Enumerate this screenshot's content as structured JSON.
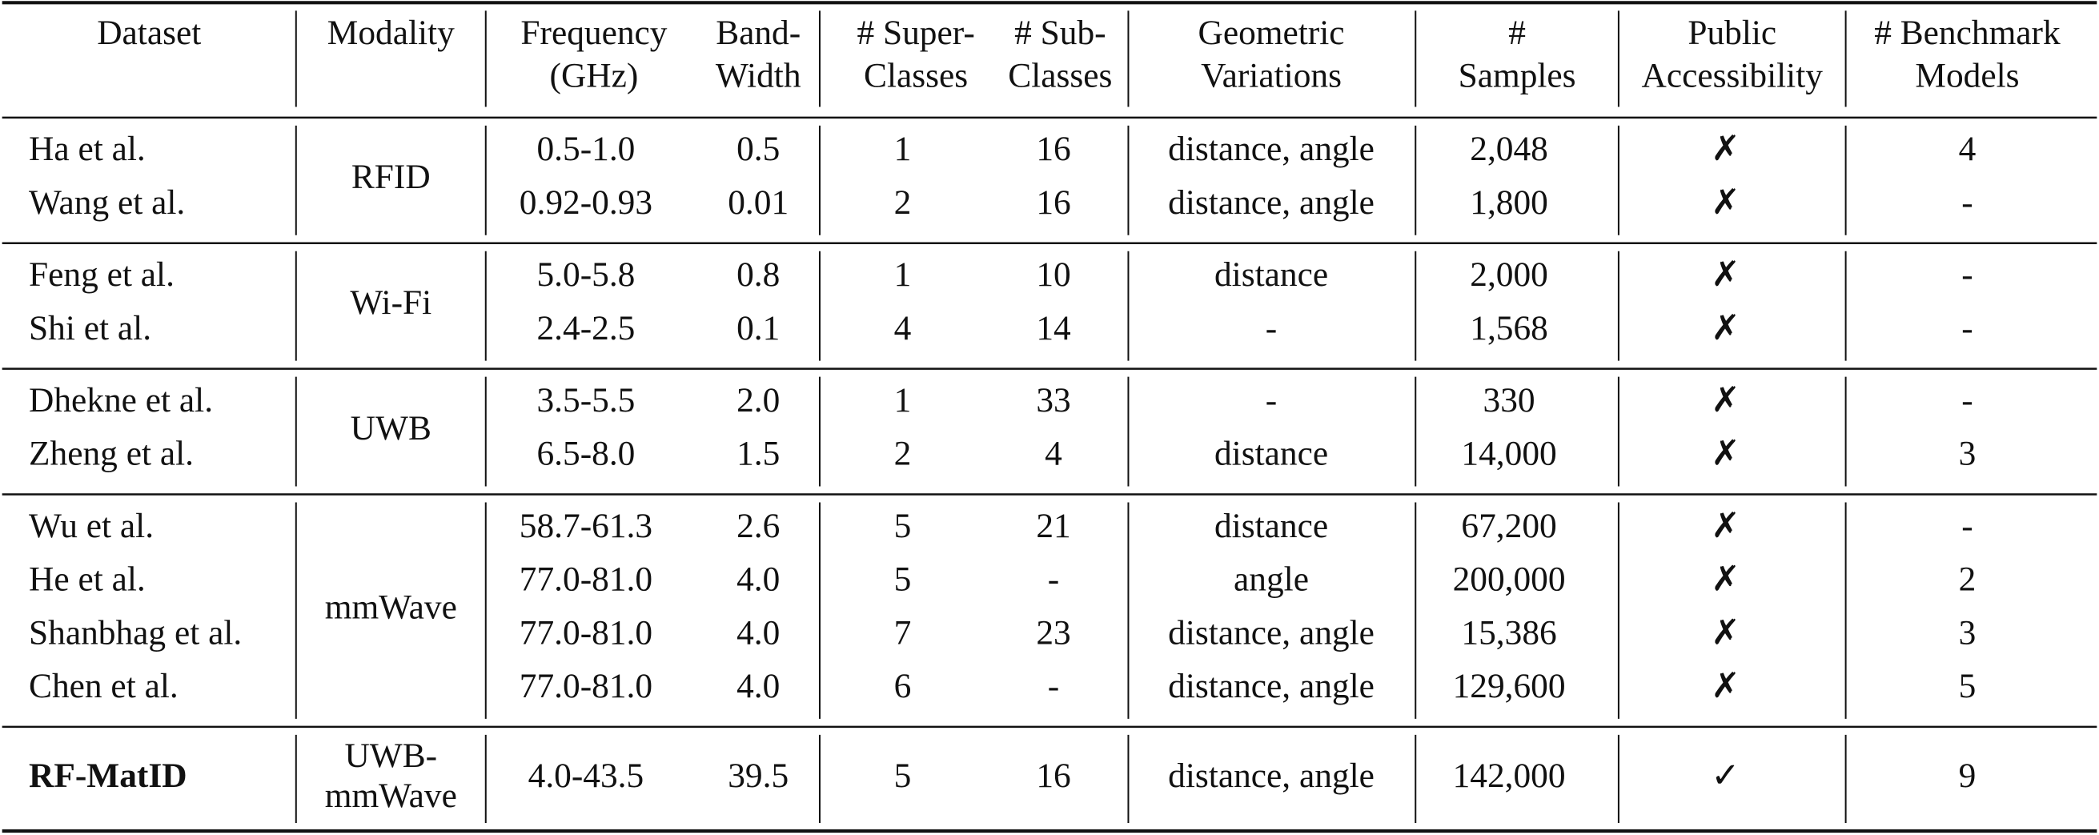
{
  "table": {
    "header": [
      [
        "Dataset"
      ],
      [
        "Modality"
      ],
      [
        "Frequency",
        "(GHz)"
      ],
      [
        "Band-",
        "Width"
      ],
      [
        "# Super-",
        "Classes"
      ],
      [
        "# Sub-",
        "Classes"
      ],
      [
        "Geometric",
        "Variations"
      ],
      [
        "#",
        "Samples"
      ],
      [
        "Public",
        "Accessibility"
      ],
      [
        "# Benchmark",
        "Models"
      ]
    ],
    "groups": [
      {
        "modality": [
          "RFID"
        ],
        "rows": [
          [
            "Ha et al.",
            "0.5-1.0",
            "0.5",
            "1",
            "16",
            "distance, angle",
            "2,048",
            "✗",
            "4"
          ],
          [
            "Wang et al.",
            "0.92-0.93",
            "0.01",
            "2",
            "16",
            "distance, angle",
            "1,800",
            "✗",
            "-"
          ]
        ]
      },
      {
        "modality": [
          "Wi-Fi"
        ],
        "rows": [
          [
            "Feng et al.",
            "5.0-5.8",
            "0.8",
            "1",
            "10",
            "distance",
            "2,000",
            "✗",
            "-"
          ],
          [
            "Shi et al.",
            "2.4-2.5",
            "0.1",
            "4",
            "14",
            "-",
            "1,568",
            "✗",
            "-"
          ]
        ]
      },
      {
        "modality": [
          "UWB"
        ],
        "rows": [
          [
            "Dhekne et al.",
            "3.5-5.5",
            "2.0",
            "1",
            "33",
            "-",
            "330",
            "✗",
            "-"
          ],
          [
            "Zheng et al.",
            "6.5-8.0",
            "1.5",
            "2",
            "4",
            "distance",
            "14,000",
            "✗",
            "3"
          ]
        ]
      },
      {
        "modality": [
          "mmWave"
        ],
        "rows": [
          [
            "Wu et al.",
            "58.7-61.3",
            "2.6",
            "5",
            "21",
            "distance",
            "67,200",
            "✗",
            "-"
          ],
          [
            "He et al.",
            "77.0-81.0",
            "4.0",
            "5",
            "-",
            "angle",
            "200,000",
            "✗",
            "2"
          ],
          [
            "Shanbhag et al.",
            "77.0-81.0",
            "4.0",
            "7",
            "23",
            "distance, angle",
            "15,386",
            "✗",
            "3"
          ],
          [
            "Chen et al.",
            "77.0-81.0",
            "4.0",
            "6",
            "-",
            "distance, angle",
            "129,600",
            "✗",
            "5"
          ]
        ]
      },
      {
        "modality": [
          "UWB-",
          "mmWave"
        ],
        "rows": [
          [
            "RF-MatID",
            "4.0-43.5",
            "39.5",
            "5",
            "16",
            "distance, angle",
            "142,000",
            "✓",
            "9"
          ]
        ]
      }
    ]
  }
}
